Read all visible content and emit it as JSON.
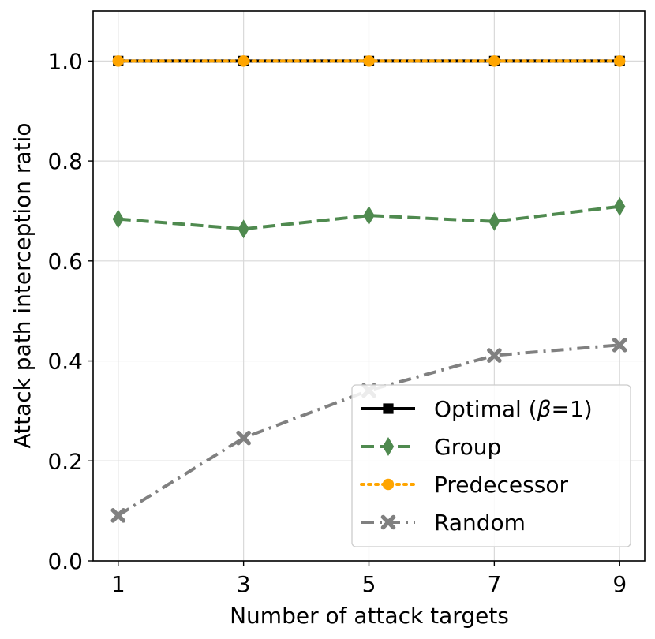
{
  "chart_data": {
    "type": "line",
    "title": "",
    "xlabel": "Number of attack targets",
    "ylabel": "Attack path interception ratio",
    "x": [
      1,
      3,
      5,
      7,
      9
    ],
    "x_ticks": [
      "1",
      "3",
      "5",
      "7",
      "9"
    ],
    "y_ticks": [
      "0.0",
      "0.2",
      "0.4",
      "0.6",
      "0.8",
      "1.0"
    ],
    "xlim": [
      0.6,
      9.4
    ],
    "ylim": [
      0.0,
      1.1
    ],
    "grid": true,
    "legend_position": "bottom-right",
    "series": [
      {
        "name": "Optimal (β=1)",
        "name_prefix": "Optimal (",
        "name_symbol": "β",
        "name_suffix": "=1)",
        "values": [
          1.0,
          1.0,
          1.0,
          1.0,
          1.0
        ],
        "color": "#000000",
        "style": "solid",
        "marker": "square"
      },
      {
        "name": "Group",
        "values": [
          0.684,
          0.664,
          0.691,
          0.679,
          0.709
        ],
        "color": "#4f8a4f",
        "style": "dashed",
        "marker": "diamond"
      },
      {
        "name": "Predecessor",
        "values": [
          1.0,
          1.0,
          1.0,
          1.0,
          1.0
        ],
        "color": "#ffa500",
        "style": "dotted",
        "marker": "circle"
      },
      {
        "name": "Random",
        "values": [
          0.091,
          0.246,
          0.341,
          0.411,
          0.432
        ],
        "color": "#808080",
        "style": "dashdot",
        "marker": "x"
      }
    ]
  }
}
